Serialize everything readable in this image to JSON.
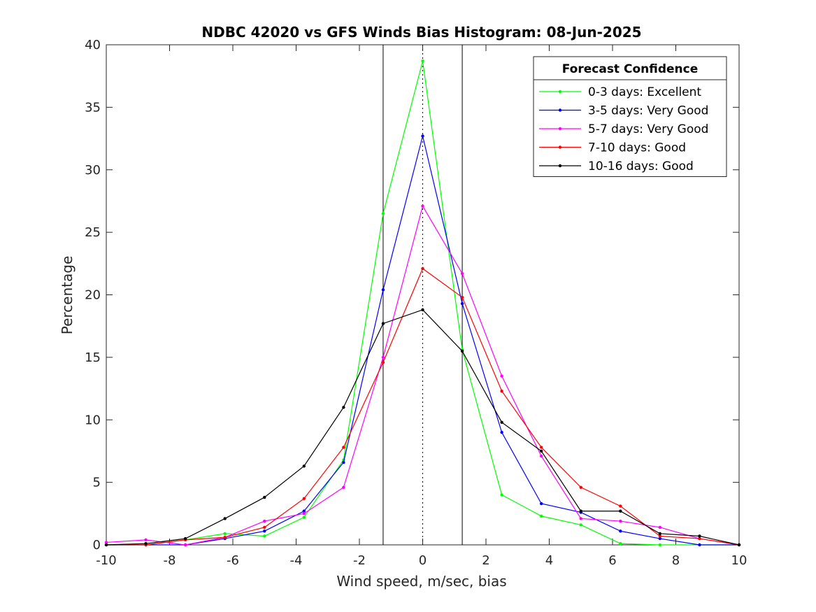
{
  "chart_data": {
    "type": "line",
    "title": "NDBC 42020 vs GFS Winds Bias Histogram: 08-Jun-2025",
    "xlabel": "Wind speed, m/sec, bias",
    "ylabel": "Percentage",
    "xlim": [
      -10,
      10
    ],
    "ylim": [
      0,
      40
    ],
    "xticks": [
      -10,
      -8,
      -6,
      -4,
      -2,
      0,
      2,
      4,
      6,
      8,
      10
    ],
    "yticks": [
      0,
      5,
      10,
      15,
      20,
      25,
      30,
      35,
      40
    ],
    "grid": false,
    "vertical_lines": [
      {
        "x": -1.25,
        "style": "solid"
      },
      {
        "x": 0,
        "style": "dotted"
      },
      {
        "x": 1.25,
        "style": "solid"
      }
    ],
    "legend": {
      "title": "Forecast Confidence",
      "position": "top-right"
    },
    "x": [
      -10,
      -8.75,
      -7.5,
      -6.25,
      -5,
      -3.75,
      -2.5,
      -1.25,
      0,
      1.25,
      2.5,
      3.75,
      5,
      6.25,
      7.5,
      8.75,
      10
    ],
    "series": [
      {
        "name": "0-3 days: Excellent",
        "color": "#00ff00",
        "values": [
          0,
          0,
          0.4,
          0.9,
          0.7,
          2.2,
          6.8,
          26.5,
          38.7,
          15.6,
          4.0,
          2.3,
          1.6,
          0.1,
          0,
          0,
          0
        ]
      },
      {
        "name": "3-5 days: Very Good",
        "color": "#0000ff",
        "values": [
          0,
          0,
          0,
          0.5,
          1.1,
          2.7,
          6.6,
          20.4,
          32.7,
          19.3,
          9.0,
          3.3,
          2.6,
          1.1,
          0.5,
          0,
          0
        ]
      },
      {
        "name": "5-7 days: Very Good",
        "color": "#ff00ff",
        "values": [
          0.2,
          0.4,
          0,
          0.6,
          1.9,
          2.5,
          4.6,
          15.0,
          27.1,
          21.7,
          13.5,
          7.1,
          2.1,
          1.9,
          1.4,
          0.5,
          0
        ]
      },
      {
        "name": "7-10 days: Good",
        "color": "#ff0000",
        "values": [
          0,
          0,
          0.4,
          0.6,
          1.4,
          3.7,
          7.8,
          14.6,
          22.1,
          19.8,
          12.3,
          7.8,
          4.6,
          3.1,
          0.7,
          0.5,
          0
        ]
      },
      {
        "name": "10-16 days: Good",
        "color": "#000000",
        "values": [
          0,
          0.1,
          0.5,
          2.1,
          3.8,
          6.3,
          11.0,
          17.7,
          18.8,
          15.5,
          9.8,
          7.5,
          2.7,
          2.7,
          0.9,
          0.7,
          0
        ]
      }
    ]
  }
}
